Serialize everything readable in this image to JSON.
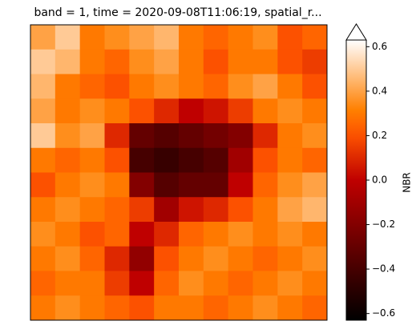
{
  "chart_data": {
    "type": "heatmap",
    "title": "band = 1, time = 2020-09-08T11:06:19, spatial_r...",
    "colorbar_label": "NBR",
    "colormap": "gist_heat",
    "clim": [
      -0.63,
      0.63
    ],
    "cticks": [
      {
        "value": -0.6,
        "label": "−0.6"
      },
      {
        "value": -0.4,
        "label": "−0.4"
      },
      {
        "value": -0.2,
        "label": "−0.2"
      },
      {
        "value": 0,
        "label": "0.0"
      },
      0.2,
      0.4,
      0.6
    ],
    "extend": "max",
    "values": [
      [
        0.4,
        0.5,
        0.3,
        0.35,
        0.4,
        0.45,
        0.3,
        0.25,
        0.3,
        0.35,
        0.2,
        0.25
      ],
      [
        0.5,
        0.45,
        0.3,
        0.25,
        0.35,
        0.4,
        0.3,
        0.2,
        0.3,
        0.3,
        0.2,
        0.15
      ],
      [
        0.45,
        0.3,
        0.25,
        0.2,
        0.3,
        0.35,
        0.3,
        0.25,
        0.35,
        0.4,
        0.3,
        0.2
      ],
      [
        0.4,
        0.3,
        0.35,
        0.3,
        0.2,
        0.1,
        0.0,
        0.05,
        0.15,
        0.3,
        0.35,
        0.3
      ],
      [
        0.5,
        0.35,
        0.4,
        0.1,
        -0.3,
        -0.35,
        -0.3,
        -0.25,
        -0.2,
        0.1,
        0.3,
        0.35
      ],
      [
        0.3,
        0.25,
        0.3,
        0.2,
        -0.4,
        -0.45,
        -0.4,
        -0.35,
        -0.1,
        0.2,
        0.3,
        0.25
      ],
      [
        0.2,
        0.3,
        0.35,
        0.3,
        -0.2,
        -0.35,
        -0.3,
        -0.3,
        0.0,
        0.25,
        0.35,
        0.4
      ],
      [
        0.3,
        0.35,
        0.3,
        0.25,
        0.15,
        -0.1,
        0.05,
        0.1,
        0.2,
        0.3,
        0.4,
        0.45
      ],
      [
        0.35,
        0.3,
        0.2,
        0.25,
        0.0,
        0.1,
        0.25,
        0.3,
        0.35,
        0.3,
        0.35,
        0.3
      ],
      [
        0.3,
        0.35,
        0.25,
        0.1,
        -0.15,
        0.2,
        0.3,
        0.35,
        0.3,
        0.25,
        0.3,
        0.35
      ],
      [
        0.25,
        0.3,
        0.3,
        0.15,
        0.0,
        0.25,
        0.35,
        0.3,
        0.25,
        0.3,
        0.35,
        0.3
      ],
      [
        0.3,
        0.35,
        0.3,
        0.25,
        0.2,
        0.3,
        0.3,
        0.25,
        0.3,
        0.35,
        0.3,
        0.25
      ]
    ]
  }
}
